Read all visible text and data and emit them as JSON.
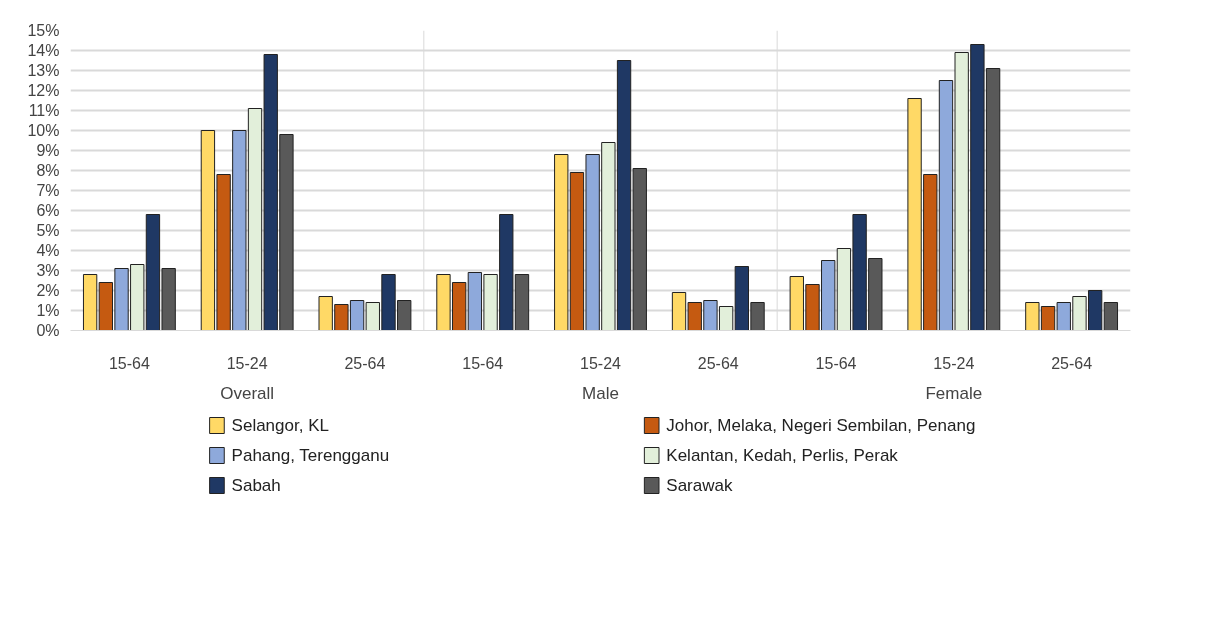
{
  "chart_data": {
    "type": "bar",
    "categories": [
      "15-64",
      "15-24",
      "25-64",
      "15-64",
      "15-24",
      "25-64",
      "15-64",
      "15-24",
      "25-64"
    ],
    "annotations": [
      "Overall",
      "Male",
      "Female"
    ],
    "series": [
      {
        "name": "Selangor, KL",
        "color": "#ffd966",
        "values": [
          2.8,
          10.0,
          1.7,
          2.8,
          8.8,
          1.9,
          2.7,
          11.6,
          1.4
        ]
      },
      {
        "name": "Johor, Melaka, Negeri Sembilan, Penang",
        "color": "#c55a11",
        "values": [
          2.4,
          7.8,
          1.3,
          2.4,
          7.9,
          1.4,
          2.3,
          7.8,
          1.2
        ]
      },
      {
        "name": "Pahang, Terengganu",
        "color": "#8ea9db",
        "values": [
          3.1,
          10.0,
          1.5,
          2.9,
          8.8,
          1.5,
          3.5,
          12.5,
          1.4
        ]
      },
      {
        "name": "Kelantan, Kedah, Perlis, Perak",
        "color": "#e2efda",
        "values": [
          3.3,
          11.1,
          1.4,
          2.8,
          9.4,
          1.2,
          4.1,
          13.9,
          1.7
        ]
      },
      {
        "name": "Sabah",
        "color": "#1f3864",
        "values": [
          5.8,
          13.8,
          2.8,
          5.8,
          13.5,
          3.2,
          5.8,
          14.3,
          2.0
        ]
      },
      {
        "name": "Sarawak",
        "color": "#595959",
        "values": [
          3.1,
          9.8,
          1.5,
          2.8,
          8.1,
          1.4,
          3.6,
          13.1,
          1.4
        ]
      }
    ],
    "ylim": [
      0,
      15
    ],
    "yticks": [
      {
        "value": 0,
        "label": "0%"
      },
      {
        "value": 1,
        "label": "1%"
      },
      {
        "value": 2,
        "label": "2%"
      },
      {
        "value": 3,
        "label": "3%"
      },
      {
        "value": 4,
        "label": "4%"
      },
      {
        "value": 5,
        "label": "5%"
      },
      {
        "value": 6,
        "label": "6%"
      },
      {
        "value": 7,
        "label": "7%"
      },
      {
        "value": 8,
        "label": "8%"
      },
      {
        "value": 9,
        "label": "9%"
      },
      {
        "value": 10,
        "label": "10%"
      },
      {
        "value": 11,
        "label": "11%"
      },
      {
        "value": 12,
        "label": "12%"
      },
      {
        "value": 13,
        "label": "13%"
      },
      {
        "value": 14,
        "label": "14%"
      },
      {
        "value": 15,
        "label": "15%"
      }
    ],
    "grid": "y",
    "legend": "bottom"
  }
}
